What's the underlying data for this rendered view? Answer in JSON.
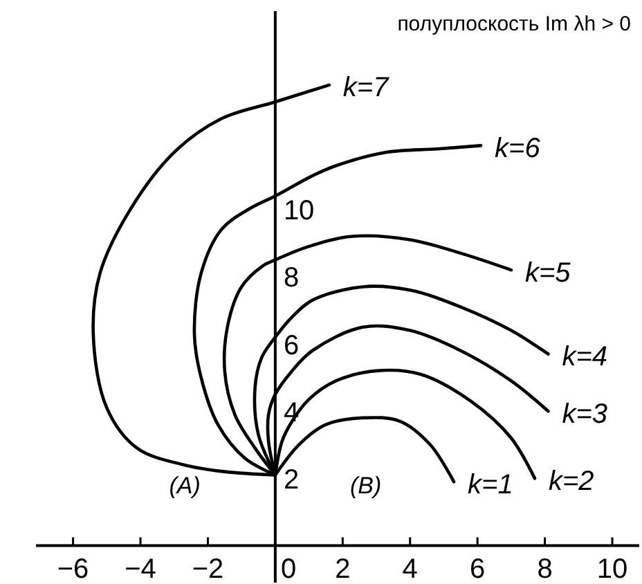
{
  "chart_data": {
    "type": "line",
    "title": "полуплоскость Im λh > 0",
    "xlim": [
      -7.1,
      10.8
    ],
    "ylim": [
      -1.1,
      15.9
    ],
    "xticks": [
      {
        "value": -6,
        "label": "−6"
      },
      {
        "value": -4,
        "label": "−4"
      },
      {
        "value": -2,
        "label": "−2"
      },
      0,
      2,
      4,
      6,
      8,
      10
    ],
    "yticks": [
      2,
      4,
      6,
      8,
      10
    ],
    "annotations": [
      "(A)",
      "(B)"
    ],
    "series": [
      {
        "name": "k=1",
        "color": "#000000",
        "x": [
          0,
          0.7,
          1.5,
          2.6,
          3.7,
          4.6,
          5.3
        ],
        "values": [
          2.1,
          3.0,
          3.6,
          3.8,
          3.7,
          3.0,
          1.9
        ]
      },
      {
        "name": "k=2",
        "color": "#000000",
        "x": [
          0,
          0.2,
          0.5,
          1.0,
          1.8,
          3.0,
          4.3,
          5.8,
          7.0,
          7.7
        ],
        "values": [
          2.1,
          3.1,
          3.7,
          4.35,
          4.9,
          5.2,
          5.1,
          4.3,
          3.2,
          2.0
        ]
      },
      {
        "name": "k=3",
        "color": "#000000",
        "x": [
          0,
          -0.2,
          -0.2,
          0.0,
          0.5,
          1.1,
          2.6,
          4.0,
          5.5,
          7.0,
          8.1
        ],
        "values": [
          2.1,
          3.1,
          3.9,
          4.5,
          5.2,
          5.8,
          6.5,
          6.4,
          5.8,
          4.9,
          4.0
        ]
      },
      {
        "name": "k=4",
        "color": "#000000",
        "x": [
          0,
          -0.5,
          -0.6,
          -0.4,
          0.0,
          0.5,
          1.1,
          2.6,
          4.0,
          5.5,
          7.0,
          8.1
        ],
        "values": [
          2.1,
          3.3,
          4.7,
          5.6,
          6.2,
          6.8,
          7.3,
          7.7,
          7.6,
          7.1,
          6.4,
          5.7
        ]
      },
      {
        "name": "k=5",
        "color": "#000000",
        "x": [
          0,
          -0.6,
          -1.2,
          -1.5,
          -1.4,
          -1.0,
          -0.4,
          0.0,
          1.0,
          2.3,
          4.0,
          5.5,
          7.0
        ],
        "values": [
          2.1,
          2.9,
          3.9,
          5.2,
          6.6,
          7.7,
          8.3,
          8.5,
          8.9,
          9.2,
          9.1,
          8.7,
          8.2
        ]
      },
      {
        "name": "k=6",
        "color": "#000000",
        "x": [
          0,
          -0.9,
          -1.7,
          -2.2,
          -2.4,
          -2.2,
          -1.6,
          -0.8,
          0.0,
          1.1,
          1.8,
          3.3,
          4.8,
          6.1
        ],
        "values": [
          2.1,
          2.6,
          3.6,
          5.0,
          6.3,
          8.1,
          9.4,
          10.0,
          10.4,
          11.0,
          11.3,
          11.7,
          11.8,
          11.9
        ]
      },
      {
        "name": "k=7",
        "color": "#000000",
        "x": [
          0,
          -1.5,
          -2.7,
          -4.1,
          -5.0,
          -5.4,
          -5.2,
          -4.3,
          -3.0,
          -1.6,
          0.0,
          1.6
        ],
        "values": [
          2.1,
          2.2,
          2.4,
          2.9,
          4.1,
          6.3,
          8.1,
          10.0,
          11.7,
          12.7,
          13.2,
          13.7
        ]
      }
    ]
  }
}
